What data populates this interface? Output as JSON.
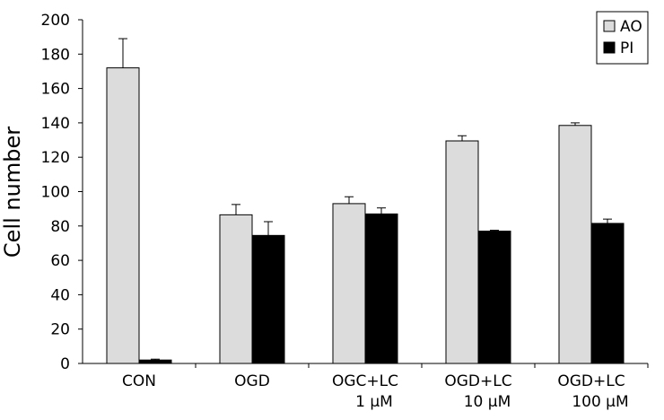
{
  "chart_data": {
    "type": "bar",
    "title": "",
    "xlabel": "",
    "ylabel": "Cell number",
    "ylim": [
      0,
      200
    ],
    "yticks": [
      0,
      20,
      40,
      60,
      80,
      100,
      120,
      140,
      160,
      180,
      200
    ],
    "grid": false,
    "legend_position": "top-right",
    "categories": [
      [
        "CON"
      ],
      [
        "OGD"
      ],
      [
        "OGC+LC",
        "1 µM"
      ],
      [
        "OGD+LC",
        "10 µM"
      ],
      [
        "OGD+LC",
        "100 µM"
      ]
    ],
    "series": [
      {
        "name": "AO",
        "color": "#dcdcdc",
        "values": [
          172,
          86.5,
          93,
          129.5,
          138.5
        ],
        "errors": [
          17,
          6,
          4,
          3,
          1.5
        ]
      },
      {
        "name": "PI",
        "color": "#000000",
        "values": [
          2,
          74.5,
          87,
          77,
          81.5
        ],
        "errors": [
          0.5,
          8,
          3.5,
          0.5,
          2.5
        ]
      }
    ]
  }
}
